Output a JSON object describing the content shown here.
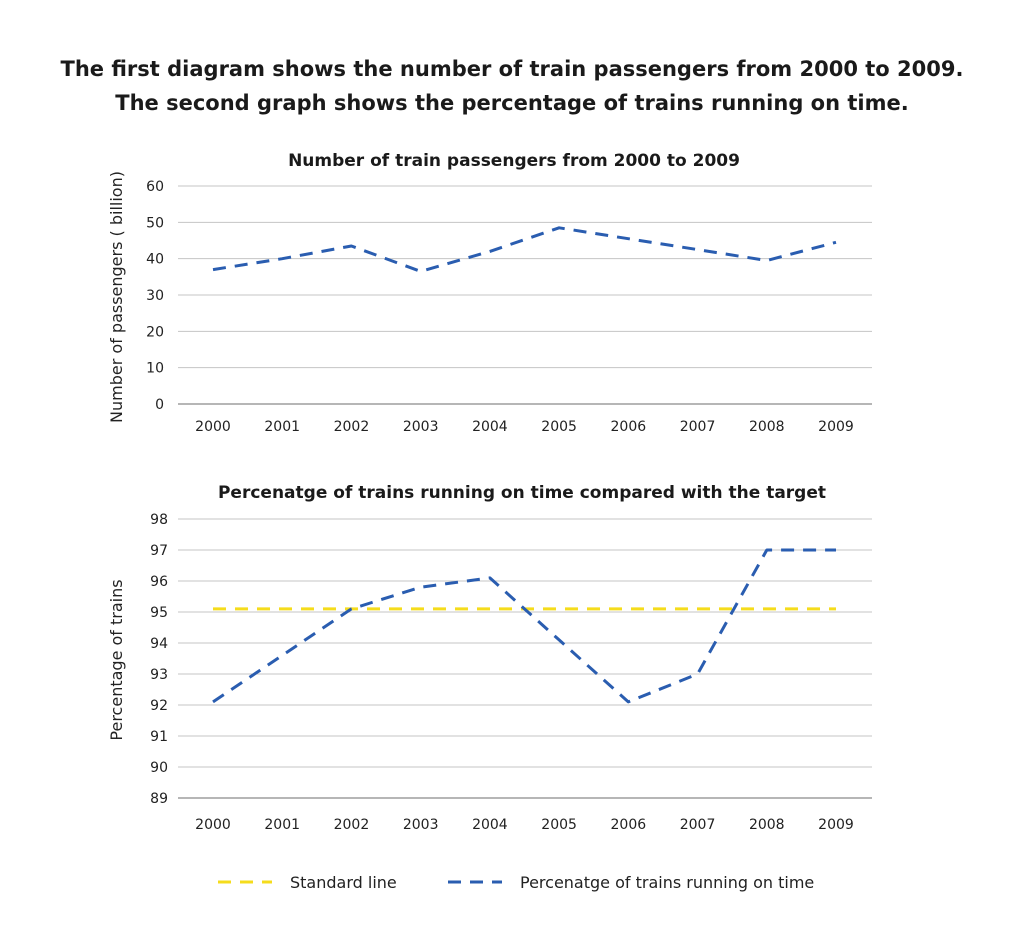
{
  "heading": {
    "line1": "The first diagram shows the number of train passengers from 2000 to 2009.",
    "line2": "The second graph shows the percentage of trains running on time."
  },
  "colors": {
    "blue": "#2a5db0",
    "yellow": "#f5dc1c"
  },
  "chart_data": [
    {
      "type": "line",
      "title": "Number of train passengers from 2000 to 2009",
      "xlabel": "",
      "ylabel": "Number of passengers ( billion)",
      "x": [
        "2000",
        "2001",
        "2002",
        "2003",
        "2004",
        "2005",
        "2006",
        "2007",
        "2008",
        "2009"
      ],
      "yticks": [
        "0",
        "10",
        "20",
        "30",
        "40",
        "50",
        "60"
      ],
      "ylim": [
        0,
        60
      ],
      "grid": true,
      "series": [
        {
          "values": [
            37,
            40,
            43.5,
            36.5,
            42,
            48.5,
            45.5,
            42.5,
            39.5,
            44.5
          ],
          "color": "#2a5db0",
          "style": "dashed"
        }
      ]
    },
    {
      "type": "line",
      "title": "Percenatge of trains running on time compared with the target",
      "xlabel": "",
      "ylabel": "Percentage of trains",
      "x": [
        "2000",
        "2001",
        "2002",
        "2003",
        "2004",
        "2005",
        "2006",
        "2007",
        "2008",
        "2009"
      ],
      "yticks": [
        "89",
        "90",
        "91",
        "92",
        "93",
        "94",
        "95",
        "96",
        "97",
        "98"
      ],
      "ylim": [
        89,
        98
      ],
      "grid": true,
      "legend": "bottom",
      "series": [
        {
          "name": "Standard line",
          "values": [
            95.1,
            95.1,
            95.1,
            95.1,
            95.1,
            95.1,
            95.1,
            95.1,
            95.1,
            95.1
          ],
          "color": "#f5dc1c",
          "style": "dashed"
        },
        {
          "name": "Percenatge of trains running on time",
          "values": [
            92.1,
            93.6,
            95.1,
            95.8,
            96.1,
            94.1,
            92.1,
            93.0,
            97.0,
            97.0
          ],
          "color": "#2a5db0",
          "style": "dashed"
        }
      ]
    }
  ]
}
